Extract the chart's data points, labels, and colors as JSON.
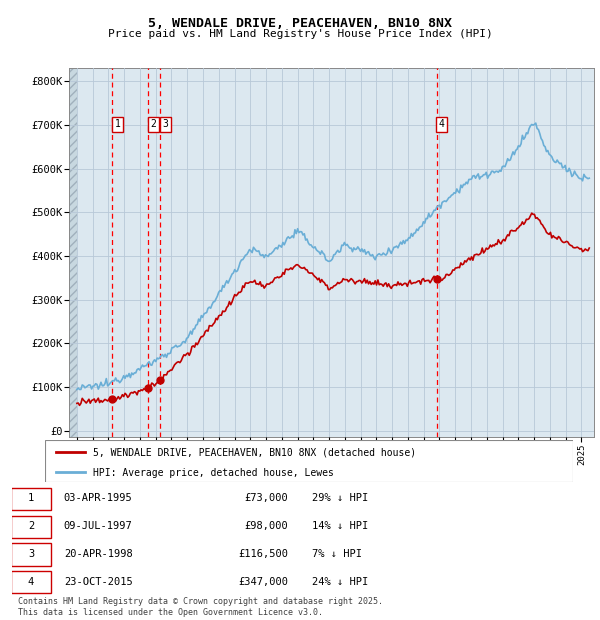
{
  "title1": "5, WENDALE DRIVE, PEACEHAVEN, BN10 8NX",
  "title2": "Price paid vs. HM Land Registry's House Price Index (HPI)",
  "xlim_start": 1992.5,
  "xlim_end": 2025.8,
  "ylim_min": -15000,
  "ylim_max": 830000,
  "yticks": [
    0,
    100000,
    200000,
    300000,
    400000,
    500000,
    600000,
    700000,
    800000
  ],
  "ytick_labels": [
    "£0",
    "£100K",
    "£200K",
    "£300K",
    "£400K",
    "£500K",
    "£600K",
    "£700K",
    "£800K"
  ],
  "hpi_color": "#6aaed6",
  "price_color": "#c00000",
  "vline_color": "#ff0000",
  "grid_color": "#b8c8d8",
  "background_color": "#dce8f0",
  "legend_label_price": "5, WENDALE DRIVE, PEACEHAVEN, BN10 8NX (detached house)",
  "legend_label_hpi": "HPI: Average price, detached house, Lewes",
  "sales": [
    {
      "num": 1,
      "year": 1995.25,
      "price": 73000
    },
    {
      "num": 2,
      "year": 1997.52,
      "price": 98000
    },
    {
      "num": 3,
      "year": 1998.3,
      "price": 116500
    },
    {
      "num": 4,
      "year": 2015.81,
      "price": 347000
    }
  ],
  "table_rows": [
    {
      "num": "1",
      "date": "03-APR-1995",
      "price": "£73,000",
      "pct": "29% ↓ HPI"
    },
    {
      "num": "2",
      "date": "09-JUL-1997",
      "price": "£98,000",
      "pct": "14% ↓ HPI"
    },
    {
      "num": "3",
      "date": "20-APR-1998",
      "price": "£116,500",
      "pct": "7% ↓ HPI"
    },
    {
      "num": "4",
      "date": "23-OCT-2015",
      "price": "£347,000",
      "pct": "24% ↓ HPI"
    }
  ],
  "footer": "Contains HM Land Registry data © Crown copyright and database right 2025.\nThis data is licensed under the Open Government Licence v3.0."
}
